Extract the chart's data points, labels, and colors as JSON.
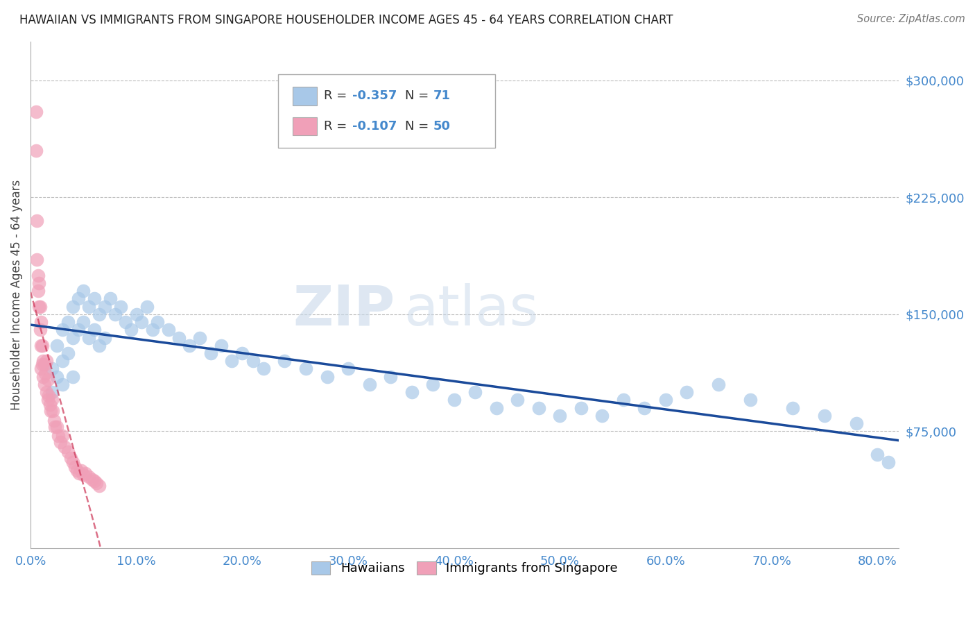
{
  "title": "HAWAIIAN VS IMMIGRANTS FROM SINGAPORE HOUSEHOLDER INCOME AGES 45 - 64 YEARS CORRELATION CHART",
  "source": "Source: ZipAtlas.com",
  "ylabel": "Householder Income Ages 45 - 64 years",
  "ytick_labels": [
    "$75,000",
    "$150,000",
    "$225,000",
    "$300,000"
  ],
  "ytick_values": [
    75000,
    150000,
    225000,
    300000
  ],
  "ymin": 0,
  "ymax": 325000,
  "xmin": 0.0,
  "xmax": 0.82,
  "blue_color": "#a8c8e8",
  "pink_color": "#f0a0b8",
  "line_blue": "#1a4a9a",
  "line_pink": "#cc3355",
  "title_color": "#222222",
  "tick_color": "#4488cc",
  "grid_color": "#bbbbbb",
  "hawaiians_x": [
    0.02,
    0.02,
    0.025,
    0.025,
    0.03,
    0.03,
    0.03,
    0.035,
    0.035,
    0.04,
    0.04,
    0.04,
    0.045,
    0.045,
    0.05,
    0.05,
    0.055,
    0.055,
    0.06,
    0.06,
    0.065,
    0.065,
    0.07,
    0.07,
    0.075,
    0.08,
    0.085,
    0.09,
    0.095,
    0.1,
    0.105,
    0.11,
    0.115,
    0.12,
    0.13,
    0.14,
    0.15,
    0.16,
    0.17,
    0.18,
    0.19,
    0.2,
    0.21,
    0.22,
    0.24,
    0.26,
    0.28,
    0.3,
    0.32,
    0.34,
    0.36,
    0.38,
    0.4,
    0.42,
    0.44,
    0.46,
    0.48,
    0.5,
    0.52,
    0.54,
    0.56,
    0.58,
    0.6,
    0.62,
    0.65,
    0.68,
    0.72,
    0.75,
    0.78,
    0.8,
    0.81
  ],
  "hawaiians_y": [
    115000,
    100000,
    130000,
    110000,
    140000,
    120000,
    105000,
    145000,
    125000,
    155000,
    135000,
    110000,
    160000,
    140000,
    165000,
    145000,
    155000,
    135000,
    160000,
    140000,
    150000,
    130000,
    155000,
    135000,
    160000,
    150000,
    155000,
    145000,
    140000,
    150000,
    145000,
    155000,
    140000,
    145000,
    140000,
    135000,
    130000,
    135000,
    125000,
    130000,
    120000,
    125000,
    120000,
    115000,
    120000,
    115000,
    110000,
    115000,
    105000,
    110000,
    100000,
    105000,
    95000,
    100000,
    90000,
    95000,
    90000,
    85000,
    90000,
    85000,
    95000,
    90000,
    95000,
    100000,
    105000,
    95000,
    90000,
    85000,
    80000,
    60000,
    55000
  ],
  "singapore_x": [
    0.005,
    0.005,
    0.006,
    0.006,
    0.007,
    0.007,
    0.008,
    0.008,
    0.009,
    0.009,
    0.01,
    0.01,
    0.01,
    0.011,
    0.011,
    0.012,
    0.012,
    0.013,
    0.013,
    0.014,
    0.015,
    0.015,
    0.016,
    0.016,
    0.017,
    0.018,
    0.019,
    0.02,
    0.021,
    0.022,
    0.023,
    0.025,
    0.026,
    0.028,
    0.03,
    0.032,
    0.035,
    0.038,
    0.04,
    0.042,
    0.044,
    0.046,
    0.048,
    0.05,
    0.052,
    0.055,
    0.058,
    0.06,
    0.062,
    0.065
  ],
  "singapore_y": [
    280000,
    255000,
    210000,
    185000,
    175000,
    165000,
    170000,
    155000,
    155000,
    140000,
    145000,
    130000,
    115000,
    130000,
    118000,
    120000,
    110000,
    118000,
    105000,
    112000,
    120000,
    100000,
    108000,
    95000,
    98000,
    92000,
    88000,
    95000,
    88000,
    82000,
    78000,
    78000,
    72000,
    68000,
    72000,
    65000,
    62000,
    58000,
    55000,
    52000,
    50000,
    48000,
    50000,
    47000,
    48000,
    46000,
    44000,
    43000,
    42000,
    40000
  ]
}
